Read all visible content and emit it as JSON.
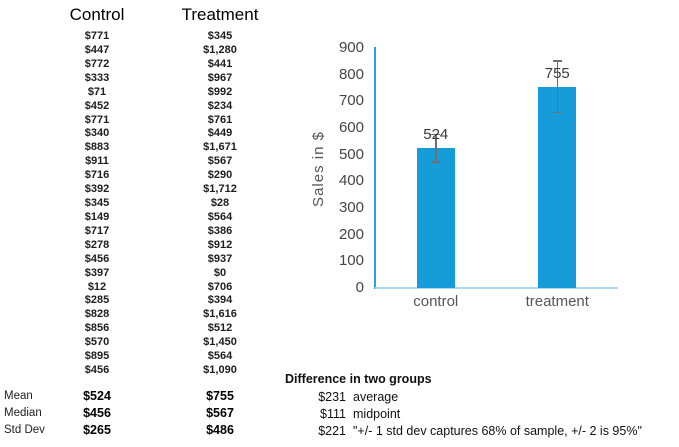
{
  "table": {
    "headers": {
      "control": "Control",
      "treatment": "Treatment"
    },
    "control": [
      "$771",
      "$447",
      "$772",
      "$333",
      "$71",
      "$452",
      "$771",
      "$340",
      "$883",
      "$911",
      "$716",
      "$392",
      "$345",
      "$149",
      "$717",
      "$278",
      "$456",
      "$397",
      "$12",
      "$285",
      "$828",
      "$856",
      "$570",
      "$895",
      "$456"
    ],
    "treatment": [
      "$345",
      "$1,280",
      "$441",
      "$967",
      "$992",
      "$234",
      "$761",
      "$449",
      "$1,671",
      "$567",
      "$290",
      "$1,712",
      "$28",
      "$564",
      "$386",
      "$912",
      "$937",
      "$0",
      "$706",
      "$394",
      "$1,616",
      "$512",
      "$1,450",
      "$564",
      "$1,090"
    ],
    "stats": [
      {
        "label": "Mean",
        "control": "$524",
        "treatment": "$755"
      },
      {
        "label": "Median",
        "control": "$456",
        "treatment": "$567"
      },
      {
        "label": "Std Dev",
        "control": "$265",
        "treatment": "$486"
      }
    ]
  },
  "chart_data": {
    "type": "bar",
    "categories": [
      "control",
      "treatment"
    ],
    "values": [
      524,
      755
    ],
    "errors": [
      53,
      97
    ],
    "data_labels": [
      "524",
      "755"
    ],
    "title": "",
    "xlabel": "",
    "ylabel": "Sales in $",
    "ylim": [
      0,
      900
    ],
    "ytick_step": 100,
    "grid": false,
    "legend": false,
    "bar_color": "#159CD9",
    "axis_color": "#2BA1DB",
    "baseline_color": "#A9DCF4",
    "error_bar_color": "#6F6F6F"
  },
  "difference": {
    "title": "Difference in two groups",
    "rows": [
      {
        "value": "$231",
        "desc": "average"
      },
      {
        "value": "$111",
        "desc": "midpoint"
      },
      {
        "value": "$221",
        "desc": "\"+/- 1 std dev captures 68% of sample, +/- 2 is 95%\""
      }
    ]
  }
}
